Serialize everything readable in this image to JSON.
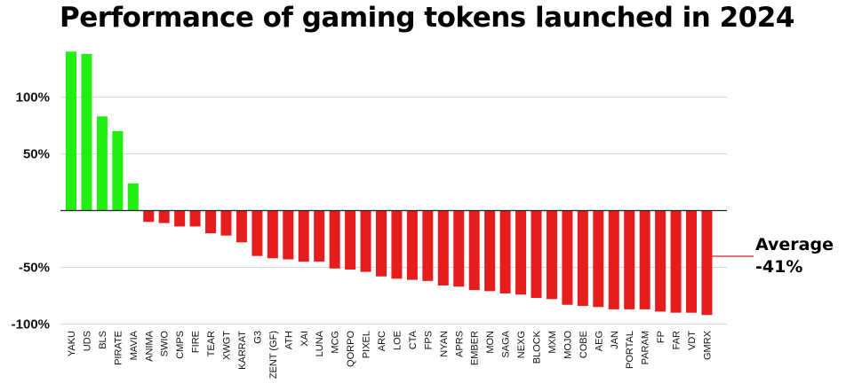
{
  "chart_data": {
    "type": "bar",
    "title": "Performance of gaming tokens launched in 2024",
    "xlabel": "",
    "ylabel": "",
    "ylim": [
      -100,
      150
    ],
    "yticks": [
      {
        "value": 100,
        "label": "100%"
      },
      {
        "value": 50,
        "label": "50%"
      },
      {
        "value": -50,
        "label": "-50%"
      },
      {
        "value": -100,
        "label": "-100%"
      }
    ],
    "grid": true,
    "categories": [
      "YAKU",
      "UDS",
      "BLS",
      "PIRATE",
      "MAVIA",
      "ANIMA",
      "SWIO",
      "CMPS",
      "FIRE",
      "TEAR",
      "XWGT",
      "KARRAT",
      "G3",
      "ZENT (GF)",
      "ATH",
      "XAI",
      "LUNA",
      "MCG",
      "QORPO",
      "PIXEL",
      "ARC",
      "LOE",
      "CTA",
      "FPS",
      "NYAN",
      "APRS",
      "EMBER",
      "MON",
      "SAGA",
      "NEXG",
      "BLOCK",
      "MXM",
      "MOJO",
      "COBE",
      "AEG",
      "JAN",
      "PORTAL",
      "PARAM",
      "FP",
      "FAR",
      "VDT",
      "GMRX"
    ],
    "values": [
      140,
      138,
      83,
      70,
      24,
      -10,
      -11,
      -14,
      -14,
      -20,
      -22,
      -28,
      -40,
      -42,
      -43,
      -45,
      -45,
      -51,
      -52,
      -54,
      -58,
      -60,
      -61,
      -62,
      -66,
      -67,
      -70,
      -71,
      -73,
      -74,
      -77,
      -78,
      -83,
      -84,
      -85,
      -87,
      -87,
      -87,
      -89,
      -90,
      -90,
      -92
    ],
    "colors": {
      "positive": "#22ee11",
      "negative": "#e51d1d"
    },
    "average": {
      "value": -41,
      "label_line1": "Average",
      "label_line2": "-41%"
    }
  }
}
